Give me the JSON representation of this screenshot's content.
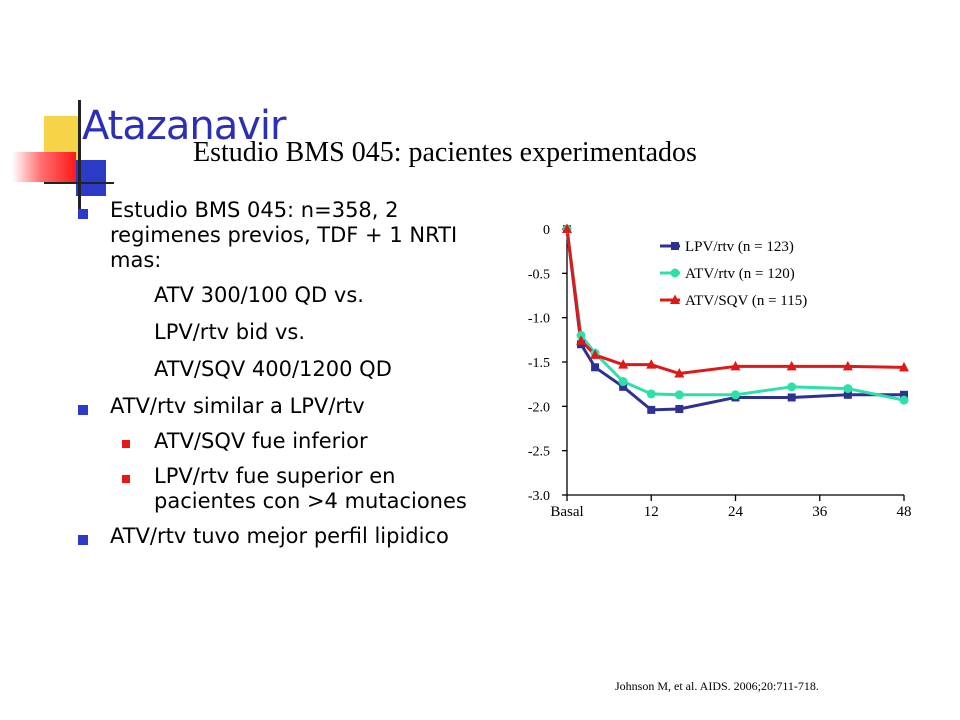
{
  "slide": {
    "title": "Atazanavir",
    "subtitle": "Estudio BMS 045: pacientes experimentados",
    "citation": "Johnson M, et al. AIDS. 2006;20:711-718."
  },
  "bullets": [
    {
      "level": 1,
      "text": "Estudio BMS 045: n=358, 2 regimenes previos, TDF + 1 NRTI mas:"
    },
    {
      "level": 0,
      "text": "ATV 300/100 QD vs."
    },
    {
      "level": 0,
      "text": "LPV/rtv bid vs."
    },
    {
      "level": 0,
      "text": "ATV/SQV 400/1200 QD"
    },
    {
      "level": 1,
      "text": "ATV/rtv similar a LPV/rtv"
    },
    {
      "level": 2,
      "text": "ATV/SQV fue inferior"
    },
    {
      "level": 2,
      "text": "LPV/rtv fue superior en pacientes con >4 mutaciones"
    },
    {
      "level": 1,
      "text": "ATV/rtv tuvo mejor perfil lipidico"
    }
  ],
  "colors": {
    "title": "#2b2fb8",
    "bullet_primary": "#2c3ac8",
    "bullet_secondary": "#e81818"
  },
  "chart_data": {
    "type": "line",
    "xlabel": "",
    "ylabel": "",
    "xlim": [
      0,
      48
    ],
    "ylim": [
      -3.0,
      0
    ],
    "x_ticks": [
      {
        "value": 0,
        "label": "Basal"
      },
      {
        "value": 12,
        "label": "12"
      },
      {
        "value": 24,
        "label": "24"
      },
      {
        "value": 36,
        "label": "36"
      },
      {
        "value": 48,
        "label": "48"
      }
    ],
    "y_ticks": [
      {
        "value": 0,
        "label": "0"
      },
      {
        "value": -0.5,
        "label": "-0.5"
      },
      {
        "value": -1.0,
        "label": "-1.0"
      },
      {
        "value": -1.5,
        "label": "-1.5"
      },
      {
        "value": -2.0,
        "label": "-2.0"
      },
      {
        "value": -2.5,
        "label": "-2.5"
      },
      {
        "value": -3.0,
        "label": "-3.0"
      }
    ],
    "legend_position": "top-right",
    "grid": false,
    "series": [
      {
        "name": "LPV/rtv (n = 123)",
        "color": "#2e3192",
        "marker": "square",
        "x": [
          0,
          2,
          4,
          8,
          12,
          16,
          24,
          32,
          40,
          48
        ],
        "y": [
          0,
          -1.3,
          -1.56,
          -1.78,
          -2.04,
          -2.03,
          -1.9,
          -1.9,
          -1.87,
          -1.87
        ]
      },
      {
        "name": "ATV/rtv (n = 120)",
        "color": "#2fe0a6",
        "marker": "circle",
        "x": [
          0,
          2,
          4,
          8,
          12,
          16,
          24,
          32,
          40,
          48
        ],
        "y": [
          0,
          -1.2,
          -1.4,
          -1.72,
          -1.86,
          -1.87,
          -1.87,
          -1.78,
          -1.8,
          -1.93
        ]
      },
      {
        "name": "ATV/SQV (n = 115)",
        "color": "#e01818",
        "marker": "triangle",
        "x": [
          0,
          2,
          4,
          8,
          12,
          16,
          24,
          32,
          40,
          48
        ],
        "y": [
          0,
          -1.26,
          -1.42,
          -1.53,
          -1.53,
          -1.63,
          -1.55,
          -1.55,
          -1.55,
          -1.56
        ]
      }
    ]
  }
}
